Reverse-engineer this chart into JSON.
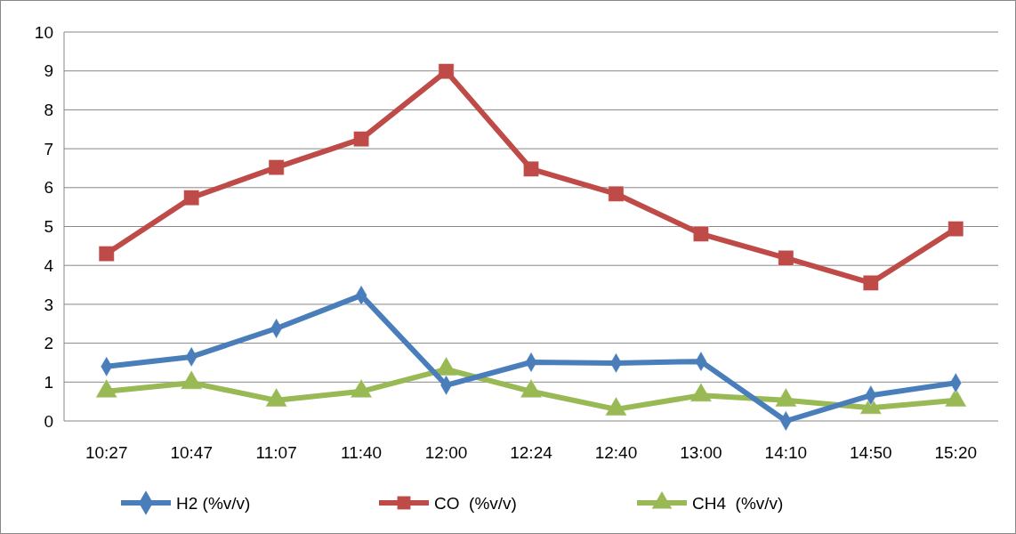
{
  "chart_data": {
    "type": "line",
    "categories": [
      "10:27",
      "10:47",
      "11:07",
      "11:40",
      "12:00",
      "12:24",
      "12:40",
      "13:00",
      "14:10",
      "14:50",
      "15:20"
    ],
    "series": [
      {
        "name": "H2 (%v/v)",
        "color": "#4a7ebb",
        "marker": "diamond",
        "values": [
          1.4,
          1.65,
          2.38,
          3.23,
          0.92,
          1.51,
          1.49,
          1.53,
          0.0,
          0.66,
          0.98
        ]
      },
      {
        "name": "CO  (%v/v)",
        "color": "#be4b48",
        "marker": "square",
        "values": [
          4.3,
          5.74,
          6.52,
          7.25,
          8.99,
          6.48,
          5.84,
          4.81,
          4.19,
          3.55,
          4.94
        ]
      },
      {
        "name": "CH4  (%v/v)",
        "color": "#98b954",
        "marker": "triangle",
        "values": [
          0.76,
          0.98,
          0.53,
          0.76,
          1.33,
          0.76,
          0.3,
          0.66,
          0.53,
          0.34,
          0.53
        ]
      }
    ],
    "ylim": [
      0,
      10
    ],
    "yticks": [
      0,
      1,
      2,
      3,
      4,
      5,
      6,
      7,
      8,
      9,
      10
    ],
    "grid": "y",
    "legend": "bottom"
  }
}
